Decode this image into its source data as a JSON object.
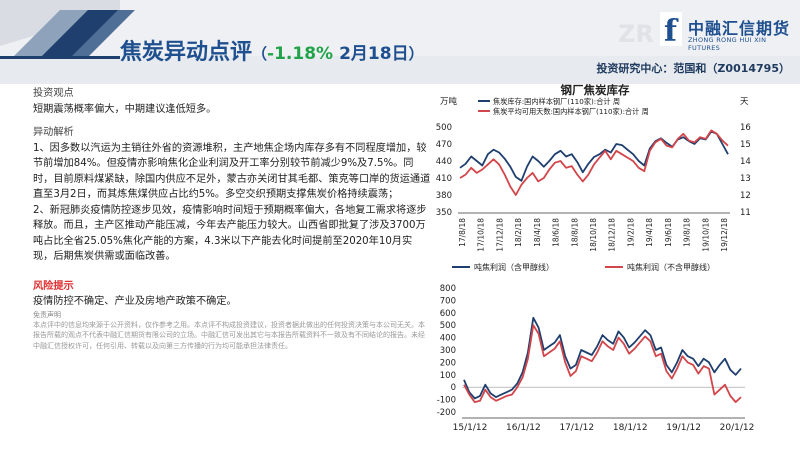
{
  "header": {
    "title_main": "焦炭异动点评",
    "paren_open": "（",
    "change": "-1.18%",
    "date": "2月18日",
    "paren_close": "）",
    "analyst": "投资研究中心：范国和（Z0014795）"
  },
  "logo": {
    "mark": "f",
    "name": "中融汇信期货",
    "sub": "ZHONG RONG HUI XIN FUTURES",
    "watermark": "ZR"
  },
  "left": {
    "view_heading": "投资观点",
    "view_text": "短期震荡概率偏大，中期建议逢低短多。",
    "analysis_heading": "异动解析",
    "analysis_1": "1、因多数以汽运为主销往外省的资源堆积，主产地焦企场内库存多有不同程度增加，较节前增加84%。但疫情亦影响焦化企业利润及开工率分别较节前减少9%及7.5%。同时，目前原料煤紧缺，除国内供应不足外，蒙古亦关闭甘其毛都、策克等口岸的货运通道直至3月2日，而其炼焦煤供应占比约5%。多空交织预期支撑焦炭价格持续震荡；",
    "analysis_2": "2、新冠肺炎疫情防控逐步见效，疫情影响时间短于预期概率偏大，各地复工需求将逐步释放。而且，主产区推动产能压减，今年去产能压力较大。山西省即批复了涉及3700万吨占比全省25.05%焦化产能的方案，4.3米以下产能去化时间提前至2020年10月实现，后期焦炭供需或面临改善。",
    "risk_heading": "风险提示",
    "risk_text": "疫情防控不确定、产业及房地产政策不确定。",
    "disclaimer_heading": "免责声明",
    "disclaimer_text": "本点评中的信息均来源于公开资料，仅作参考之用。本点评不构成投资建议，投资者据此做出的任何投资决策与本公司无关。本报告所载的观点不代表中融汇信期货有限公司的立场。中融汇信可发出其它与本报告所载资料不一致及有不同结论的报告。未经中融汇信授权许可，任何引用、转载以及向第三方传播的行为均可能承担法律责任。"
  },
  "chart_data": [
    {
      "type": "line",
      "title": "钢厂焦炭库存",
      "ylabel_left": "万吨",
      "ylabel_right": "天",
      "ylim_left": [
        350,
        500
      ],
      "ylim_right": [
        11,
        16
      ],
      "yticks_left": [
        "500",
        "470",
        "440",
        "410",
        "380",
        "350"
      ],
      "yticks_right": [
        "16",
        "15",
        "14",
        "13",
        "12",
        "11"
      ],
      "x_ticks": [
        "17/8/18",
        "17/10/18",
        "17/12/18",
        "18/2/18",
        "18/4/18",
        "18/6/18",
        "18/8/18",
        "18/10/18",
        "18/12/18",
        "19/2/18",
        "19/4/18",
        "19/6/18",
        "19/8/18",
        "19/10/18",
        "19/12/18"
      ],
      "legend_position": "top",
      "series": [
        {
          "name": "焦炭库存:国内样本钢厂(110家):合计 周",
          "axis": "left",
          "color": "#1f3f6e",
          "values": [
            428,
            435,
            448,
            440,
            432,
            452,
            460,
            455,
            444,
            430,
            412,
            405,
            430,
            448,
            440,
            430,
            440,
            452,
            458,
            448,
            452,
            438,
            420,
            435,
            447,
            452,
            460,
            455,
            470,
            468,
            460,
            452,
            440,
            432,
            462,
            475,
            480,
            472,
            465,
            478,
            482,
            475,
            470,
            480,
            478,
            492,
            488,
            470,
            452
          ]
        },
        {
          "name": "焦炭平均可用天数:国内样本钢厂(110家):合计 周",
          "axis": "right",
          "color": "#d2454a",
          "values": [
            13.0,
            13.2,
            13.6,
            13.3,
            13.5,
            13.8,
            14.1,
            13.8,
            13.2,
            12.5,
            12.0,
            12.6,
            13.0,
            13.3,
            12.8,
            13.0,
            13.5,
            13.9,
            14.0,
            13.6,
            13.7,
            13.2,
            12.8,
            13.2,
            13.8,
            14.2,
            14.6,
            14.1,
            14.6,
            14.4,
            14.2,
            14.0,
            13.6,
            13.4,
            14.6,
            15.1,
            15.3,
            14.9,
            14.8,
            15.3,
            15.6,
            15.2,
            15.1,
            15.4,
            15.3,
            15.8,
            15.6,
            15.2,
            14.9
          ]
        }
      ]
    },
    {
      "type": "line",
      "ylim": [
        -200,
        800
      ],
      "yticks": [
        "800",
        "700",
        "600",
        "500",
        "400",
        "300",
        "200",
        "100",
        "0",
        "-100",
        "-200"
      ],
      "x_ticks": [
        "15/1/12",
        "16/1/12",
        "17/1/12",
        "18/1/12",
        "19/1/12",
        "20/1/12"
      ],
      "legend_position": "top",
      "series": [
        {
          "name": "吨焦利润（含甲醇线）",
          "color": "#1f3f6e",
          "values": [
            60,
            -40,
            -90,
            -70,
            20,
            -50,
            -80,
            -60,
            -40,
            -20,
            30,
            120,
            280,
            560,
            480,
            300,
            330,
            360,
            420,
            250,
            150,
            180,
            300,
            280,
            260,
            330,
            420,
            380,
            350,
            450,
            400,
            320,
            360,
            410,
            460,
            420,
            300,
            320,
            180,
            120,
            200,
            300,
            250,
            230,
            170,
            230,
            200,
            120,
            180,
            230,
            140,
            100,
            150
          ]
        },
        {
          "name": "吨焦利润（不含甲醇线）",
          "color": "#d2454a",
          "values": [
            20,
            -60,
            -120,
            -110,
            -20,
            -80,
            -110,
            -90,
            -70,
            -60,
            0,
            80,
            230,
            500,
            430,
            250,
            280,
            310,
            370,
            200,
            90,
            130,
            250,
            230,
            210,
            280,
            370,
            330,
            300,
            400,
            350,
            270,
            310,
            360,
            410,
            370,
            250,
            270,
            130,
            70,
            150,
            250,
            200,
            180,
            110,
            170,
            150,
            -60,
            -20,
            20,
            -70,
            -120,
            -80
          ]
        }
      ]
    }
  ]
}
